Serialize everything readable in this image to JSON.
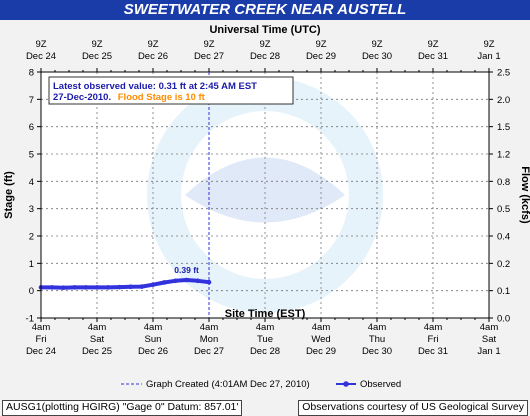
{
  "header": {
    "title": "SWEETWATER CREEK NEAR AUSTELL"
  },
  "colors": {
    "title_bar": "#1a3ca8",
    "observed": "#3333dd",
    "flood_stage_text": "#ff8c00",
    "info_text": "#1a1aaa"
  },
  "footer": {
    "left": "AUSG1(plotting HGIRG) \"Gage 0\" Datum: 857.01'",
    "right": "Observations courtesy of US Geological Survey"
  },
  "chart_data": {
    "type": "line",
    "title": "SWEETWATER CREEK NEAR AUSTELL",
    "top_axis_title": "Universal Time (UTC)",
    "xlabel": "Site Time (EST)",
    "ylabel": "Stage (ft)",
    "y2label": "Flow (kcfs)",
    "ylim": [
      -1,
      8
    ],
    "y_ticks": [
      -1,
      0,
      1,
      2,
      3,
      4,
      5,
      6,
      7,
      8
    ],
    "y2_ticks": [
      "0.0",
      "0.1",
      "0.2",
      "0.4",
      "0.5",
      "0.8",
      "1.2",
      "1.5",
      "2.0",
      "2.5"
    ],
    "top_ticks": [
      [
        "9Z",
        "Dec 24"
      ],
      [
        "9Z",
        "Dec 25"
      ],
      [
        "9Z",
        "Dec 26"
      ],
      [
        "9Z",
        "Dec 27"
      ],
      [
        "9Z",
        "Dec 28"
      ],
      [
        "9Z",
        "Dec 29"
      ],
      [
        "9Z",
        "Dec 30"
      ],
      [
        "9Z",
        "Dec 31"
      ],
      [
        "9Z",
        "Jan 1"
      ]
    ],
    "bottom_ticks": [
      [
        "4am",
        "Fri",
        "Dec 24"
      ],
      [
        "4am",
        "Sat",
        "Dec 25"
      ],
      [
        "4am",
        "Sun",
        "Dec 26"
      ],
      [
        "4am",
        "Mon",
        "Dec 27"
      ],
      [
        "4am",
        "Tue",
        "Dec 28"
      ],
      [
        "4am",
        "Wed",
        "Dec 29"
      ],
      [
        "4am",
        "Thu",
        "Dec 30"
      ],
      [
        "4am",
        "Fri",
        "Dec 31"
      ],
      [
        "4am",
        "Sat",
        "Jan 1"
      ]
    ],
    "info_line1": "Latest observed value: 0.31 ft at 2:45 AM EST",
    "info_line2_date": "27-Dec-2010.",
    "info_line2_flood": "Flood Stage is 10 ft",
    "peak_label": "0.39 ft",
    "peak_day": 2.6,
    "peak_stage": 0.39,
    "graph_created_day": 3.0,
    "legend": {
      "graph_created": "Graph Created (4:01AM Dec 27, 2010)",
      "observed": "Observed"
    },
    "grid": true,
    "series": [
      {
        "name": "Observed",
        "x_days_since_dec24_4am": [
          0,
          0.2,
          0.4,
          0.6,
          0.8,
          1.0,
          1.2,
          1.4,
          1.6,
          1.8,
          2.0,
          2.2,
          2.4,
          2.6,
          2.8,
          3.0
        ],
        "values": [
          0.12,
          0.12,
          0.11,
          0.12,
          0.12,
          0.12,
          0.12,
          0.13,
          0.14,
          0.15,
          0.22,
          0.3,
          0.36,
          0.39,
          0.36,
          0.31
        ]
      }
    ]
  }
}
